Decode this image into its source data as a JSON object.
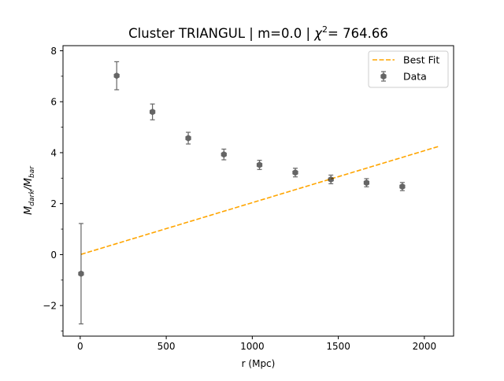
{
  "chart_data": {
    "type": "scatter",
    "title_prefix": "Cluster TRIANGUL | m=0.0 | ",
    "title_chi": "χ",
    "title_sup": "2",
    "title_suffix": "= 764.66",
    "xlabel": "r (Mpc)",
    "ylabel_main": "M",
    "ylabel_sub1": "dark",
    "ylabel_slash": "/M",
    "ylabel_sub2": "bar",
    "xlim": [
      -100,
      2170
    ],
    "ylim": [
      -3.2,
      8.2
    ],
    "xticks": [
      0,
      500,
      1000,
      1500,
      2000
    ],
    "xtick_labels": [
      "0",
      "500",
      "1000",
      "1500",
      "2000"
    ],
    "yticks": [
      -2,
      0,
      2,
      4,
      6,
      8
    ],
    "ytick_labels": [
      "−2",
      "0",
      "2",
      "4",
      "6",
      "8"
    ],
    "yminor_ticks": [
      -3,
      -1,
      1,
      3,
      5,
      7
    ],
    "grid": false,
    "legend_position": "top-right",
    "colors": {
      "fit": "#ffa500",
      "data": "#000000",
      "axes": "#000000"
    },
    "series": [
      {
        "name": "Data",
        "kind": "errorbar",
        "x": [
          5,
          212,
          420,
          628,
          835,
          1042,
          1250,
          1457,
          1664,
          1872
        ],
        "y": [
          -0.75,
          7.02,
          5.6,
          4.57,
          3.93,
          3.52,
          3.22,
          2.95,
          2.82,
          2.67
        ],
        "yerr": [
          1.97,
          0.55,
          0.31,
          0.23,
          0.21,
          0.18,
          0.17,
          0.17,
          0.16,
          0.16
        ]
      },
      {
        "name": "Best Fit",
        "kind": "line",
        "style": "dashed",
        "x": [
          5,
          2080
        ],
        "y": [
          0.01,
          4.24
        ]
      }
    ]
  }
}
